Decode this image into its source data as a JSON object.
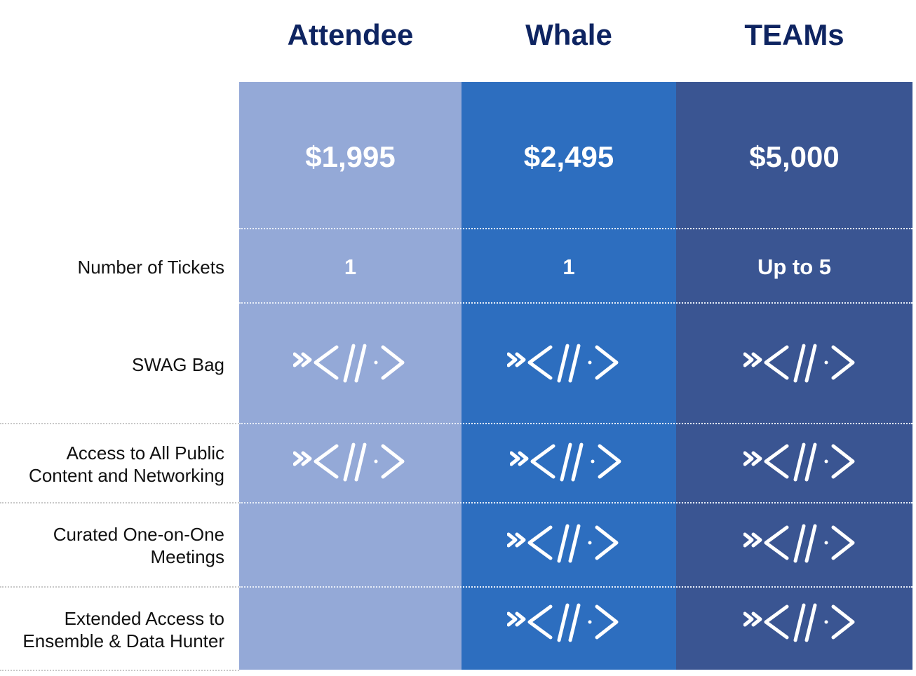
{
  "tiers": [
    {
      "name": "Attendee",
      "price": "$1,995",
      "tickets": "1",
      "color": "#94a9d7"
    },
    {
      "name": "Whale",
      "price": "$2,495",
      "tickets": "1",
      "color": "#2d6ebf"
    },
    {
      "name": "TEAMs",
      "price": "$5,000",
      "tickets": "Up to 5",
      "color": "#3a5592"
    }
  ],
  "rows": {
    "tickets": "Number of Tickets",
    "swag": "SWAG Bag",
    "access_line1": "Access to All Public",
    "access_line2": "Content and Networking",
    "curated_line1": "Curated One-on-One",
    "curated_line2": "Meetings",
    "extended_line1": "Extended Access to",
    "extended_line2": "Ensemble & Data Hunter"
  },
  "features": {
    "swag": [
      true,
      true,
      true
    ],
    "access": [
      true,
      true,
      true
    ],
    "curated": [
      false,
      true,
      true
    ],
    "extended": [
      false,
      true,
      true
    ]
  },
  "icon": "code-chevron-icon",
  "colors": {
    "heading": "#0e2461",
    "attendee": "#94a9d7",
    "whale": "#2d6ebf",
    "teams": "#3a5592"
  }
}
